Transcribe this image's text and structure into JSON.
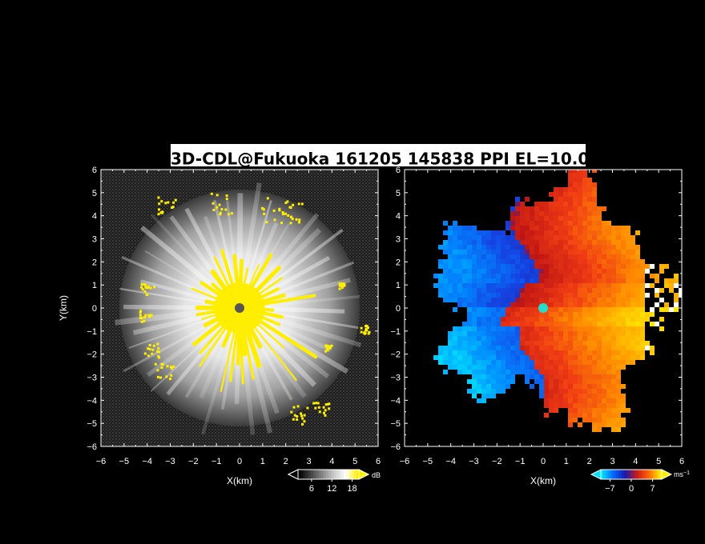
{
  "title": "3D-CDL@Fukuoka 161205 145838 PPI EL=10.0",
  "title_degree": "o",
  "colors": {
    "background": "#000000",
    "frame": "#ffffff",
    "echo_core": "#ffee00",
    "radar_center_left": "#555555",
    "radar_center_right": "#22ddcc"
  },
  "chart_data": [
    {
      "type": "heatmap",
      "panel": "left",
      "quantity": "reflectivity / intensity",
      "xlabel": "X(km)",
      "ylabel": "Y(km)",
      "xlim": [
        -6,
        6
      ],
      "ylim": [
        -6,
        6
      ],
      "x_ticks": [
        "−6",
        "−5",
        "−4",
        "−3",
        "−2",
        "−1",
        "0",
        "1",
        "2",
        "3",
        "4",
        "5",
        "6"
      ],
      "y_ticks": [
        "6",
        "5",
        "4",
        "3",
        "2",
        "1",
        "0",
        "−1",
        "−2",
        "−3",
        "−4",
        "−5",
        "−6"
      ],
      "colorbar": {
        "unit": "dB",
        "ticks": [
          "6",
          "12",
          "18"
        ],
        "tick_values": [
          6,
          12,
          18
        ],
        "range": [
          2,
          20
        ],
        "colors": [
          "#000000",
          "#444444",
          "#888888",
          "#cccccc",
          "#ffffff",
          "#ffee00"
        ]
      },
      "center": [
        0,
        0
      ]
    },
    {
      "type": "heatmap",
      "panel": "right",
      "quantity": "Doppler velocity",
      "xlabel": "X(km)",
      "ylabel": "",
      "xlim": [
        -6,
        6
      ],
      "ylim": [
        -6,
        6
      ],
      "x_ticks": [
        "−6",
        "−5",
        "−4",
        "−3",
        "−2",
        "−1",
        "0",
        "1",
        "2",
        "3",
        "4",
        "5",
        "6"
      ],
      "y_ticks": [
        "6",
        "5",
        "4",
        "3",
        "2",
        "1",
        "0",
        "−1",
        "−2",
        "−3",
        "−4",
        "−5",
        "−6"
      ],
      "colorbar": {
        "unit": "ms",
        "unit_exp": "−1",
        "ticks": [
          "−7",
          "0",
          "7"
        ],
        "tick_values": [
          -7,
          0,
          7
        ],
        "range": [
          -10,
          10
        ],
        "colors": [
          "#00e0ff",
          "#0060ff",
          "#1a1aa8",
          "#cc1a1a",
          "#ff6600",
          "#ffee00"
        ]
      },
      "center": [
        0,
        0
      ]
    }
  ]
}
